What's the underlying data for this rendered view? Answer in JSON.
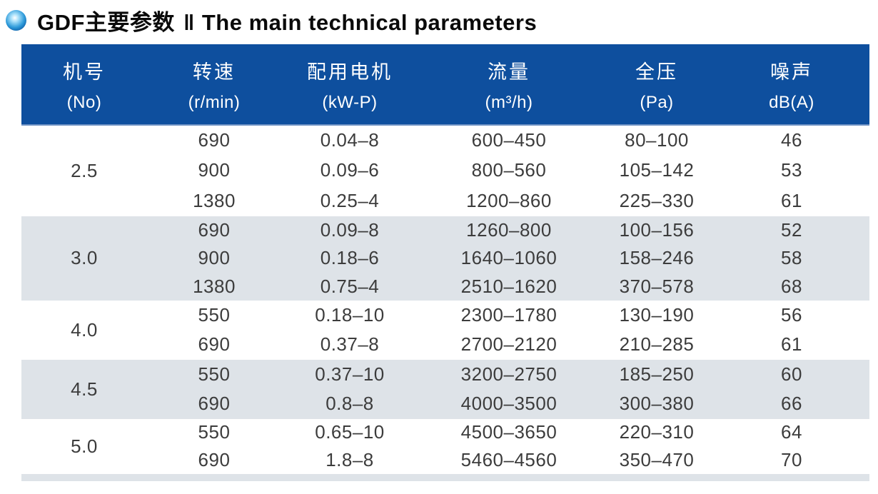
{
  "page": {
    "title_zh": "GDF主要参数",
    "title_separator": "‖",
    "title_en": "The main technical parameters"
  },
  "table": {
    "columns": [
      {
        "key": "model-no",
        "name_zh": "机号",
        "unit": "(No)"
      },
      {
        "key": "speed",
        "name_zh": "转速",
        "unit": "(r/min)"
      },
      {
        "key": "motor",
        "name_zh": "配用电机",
        "unit": "(kW-P)"
      },
      {
        "key": "airflow",
        "name_zh": "流量",
        "unit": "(m³/h)"
      },
      {
        "key": "pressure",
        "name_zh": "全压",
        "unit": "(Pa)"
      },
      {
        "key": "noise",
        "name_zh": "噪声",
        "unit": "dB(A)"
      }
    ],
    "groups": [
      {
        "model": "2.5",
        "shaded": false,
        "rows": [
          [
            "690",
            "0.04–8",
            "600–450",
            "80–100",
            "46"
          ],
          [
            "900",
            "0.09–6",
            "800–560",
            "105–142",
            "53"
          ],
          [
            "1380",
            "0.25–4",
            "1200–860",
            "225–330",
            "61"
          ]
        ]
      },
      {
        "model": "3.0",
        "shaded": true,
        "rows": [
          [
            "690",
            "0.09–8",
            "1260–800",
            "100–156",
            "52"
          ],
          [
            "900",
            "0.18–6",
            "1640–1060",
            "158–246",
            "58"
          ],
          [
            "1380",
            "0.75–4",
            "2510–1620",
            "370–578",
            "68"
          ]
        ]
      },
      {
        "model": "4.0",
        "shaded": false,
        "rows": [
          [
            "550",
            "0.18–10",
            "2300–1780",
            "130–190",
            "56"
          ],
          [
            "690",
            "0.37–8",
            "2700–2120",
            "210–285",
            "61"
          ]
        ]
      },
      {
        "model": "4.5",
        "shaded": true,
        "rows": [
          [
            "550",
            "0.37–10",
            "3200–2750",
            "185–250",
            "60"
          ],
          [
            "690",
            "0.8–8",
            "4000–3500",
            "300–380",
            "66"
          ]
        ]
      },
      {
        "model": "5.0",
        "shaded": false,
        "rows": [
          [
            "550",
            "0.65–10",
            "4500–3650",
            "220–310",
            "64"
          ],
          [
            "690",
            "1.8–8",
            "5460–4560",
            "350–470",
            "70"
          ]
        ]
      }
    ]
  },
  "colors": {
    "header_bg": "#0e4f9e",
    "header_border": "#6f92c4",
    "shaded_row": "#dee3e8",
    "data_text": "#3c3c3c",
    "title_text": "#0a0a0a"
  }
}
